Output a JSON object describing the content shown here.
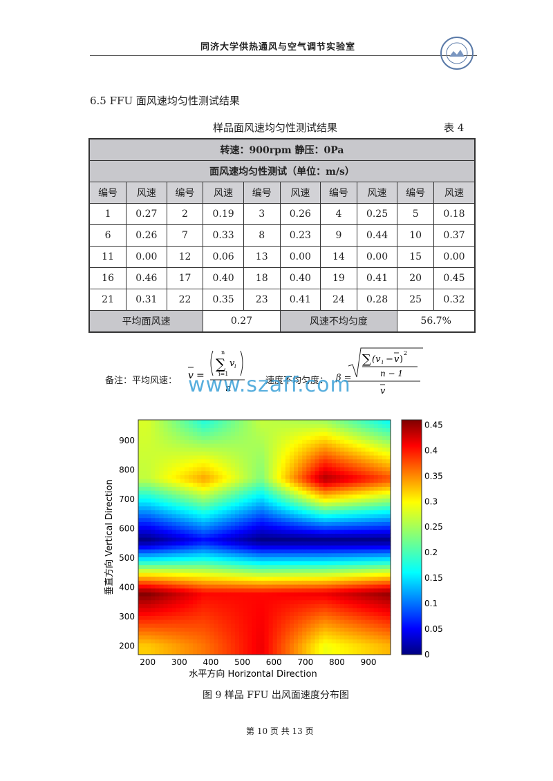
{
  "header": {
    "title": "同济大学供热通风与空气调节实验室"
  },
  "section_title": "6.5 FFU 面风速均匀性测试结果",
  "table": {
    "caption": "样品面风速均匀性测试结果",
    "number": "表 4",
    "row1": "转速：900rpm  静压：0Pa",
    "row2": "面风速均匀性测试（单位：m/s）",
    "col_headers": [
      "编号",
      "风速",
      "编号",
      "风速",
      "编号",
      "风速",
      "编号",
      "风速",
      "编号",
      "风速"
    ],
    "rows": [
      [
        "1",
        "0.27",
        "2",
        "0.19",
        "3",
        "0.26",
        "4",
        "0.25",
        "5",
        "0.18"
      ],
      [
        "6",
        "0.26",
        "7",
        "0.33",
        "8",
        "0.23",
        "9",
        "0.44",
        "10",
        "0.37"
      ],
      [
        "11",
        "0.00",
        "12",
        "0.06",
        "13",
        "0.00",
        "14",
        "0.00",
        "15",
        "0.00"
      ],
      [
        "16",
        "0.46",
        "17",
        "0.40",
        "18",
        "0.40",
        "19",
        "0.41",
        "20",
        "0.45"
      ],
      [
        "21",
        "0.31",
        "22",
        "0.35",
        "23",
        "0.41",
        "24",
        "0.28",
        "25",
        "0.32"
      ]
    ],
    "avg_label": "平均面风速",
    "avg_value": "0.27",
    "nonuni_label": "风速不均匀度",
    "nonuni_value": "56.7%"
  },
  "note": {
    "label": "备注：平均风速：",
    "label2": "速度不均匀度：",
    "beta": "β ="
  },
  "watermark": "www.szaff.com",
  "chart_data": {
    "type": "heatmap",
    "xlabel": "水平方向 Horizontal Direction",
    "ylabel": "垂直方向 Vertical Direction",
    "xticks": [
      200,
      300,
      400,
      500,
      600,
      700,
      800,
      900
    ],
    "yticks": [
      200,
      300,
      400,
      500,
      600,
      700,
      800,
      900
    ],
    "xlim": [
      170,
      970
    ],
    "ylim": [
      170,
      970
    ],
    "colorbar_ticks": [
      0,
      0.05,
      0.1,
      0.15,
      0.2,
      0.25,
      0.3,
      0.35,
      0.4,
      0.45
    ],
    "colorbar_range": [
      0,
      0.46
    ],
    "x": [
      200,
      380,
      560,
      760,
      960
    ],
    "y": [
      960,
      770,
      560,
      380,
      200
    ],
    "z": [
      [
        0.27,
        0.19,
        0.26,
        0.25,
        0.18
      ],
      [
        0.26,
        0.33,
        0.23,
        0.44,
        0.37
      ],
      [
        0.0,
        0.06,
        0.0,
        0.0,
        0.0
      ],
      [
        0.46,
        0.4,
        0.4,
        0.41,
        0.45
      ],
      [
        0.31,
        0.35,
        0.41,
        0.28,
        0.32
      ]
    ]
  },
  "figure_caption": "图 9    样品 FFU 出风面速度分布图",
  "footer": "第 10 页   共 13 页"
}
